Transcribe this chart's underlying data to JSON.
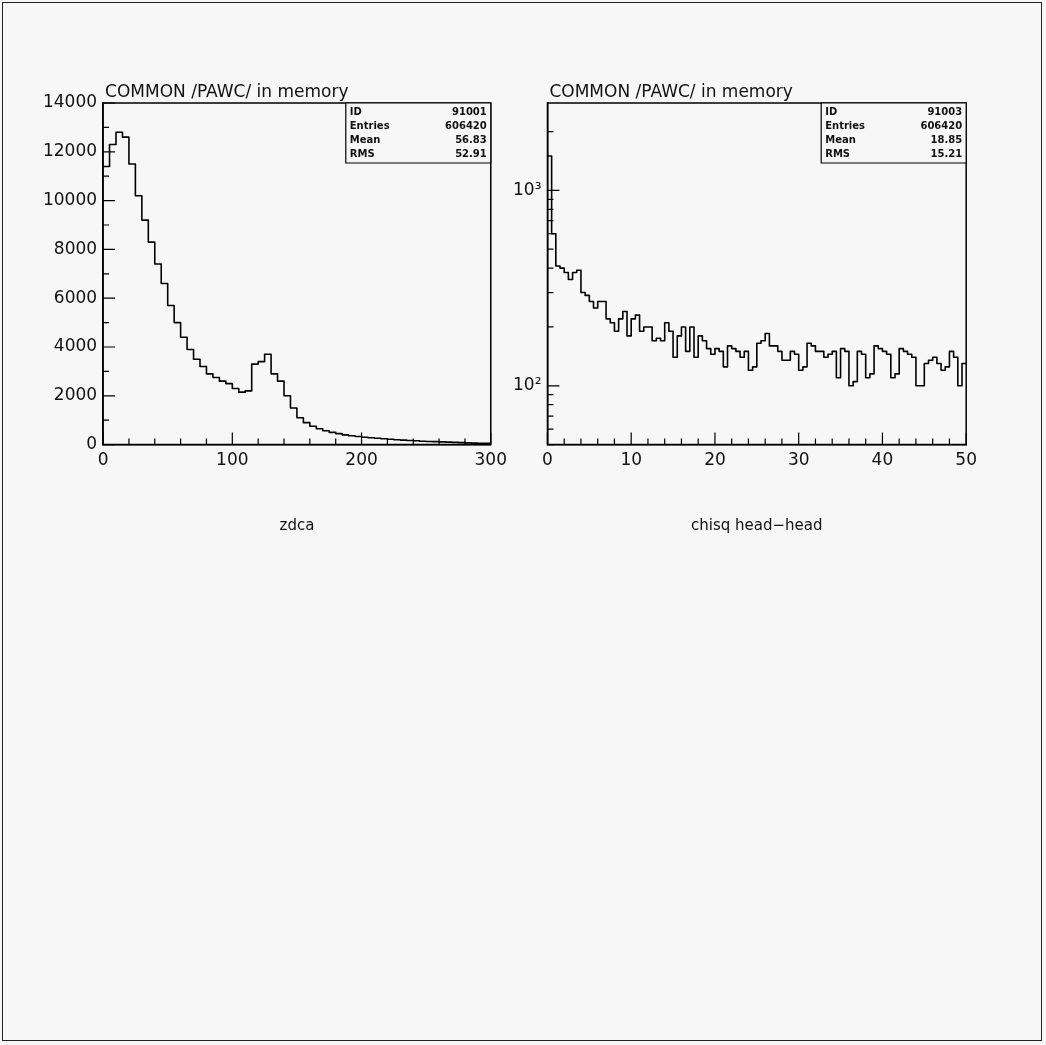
{
  "chart_data": [
    {
      "type": "histogram",
      "title": "COMMON /PAWC/ in memory",
      "xlabel": "zdca",
      "color": "#000000",
      "bins": [
        0,
        5,
        10,
        15,
        20,
        25,
        30,
        35,
        40,
        45,
        50,
        55,
        60,
        65,
        70,
        75,
        80,
        85,
        90,
        95,
        100,
        105,
        110,
        115,
        120,
        125,
        130,
        135,
        140,
        145,
        150,
        155,
        160,
        165,
        170,
        175,
        180,
        185,
        190,
        195,
        200,
        205,
        210,
        215,
        220,
        225,
        230,
        235,
        240,
        245,
        250,
        255,
        260,
        265,
        270,
        275,
        280,
        285,
        290,
        295,
        300
      ],
      "values": [
        11400,
        12300,
        12800,
        12600,
        11500,
        10200,
        9200,
        8300,
        7400,
        6600,
        5700,
        5000,
        4400,
        3900,
        3500,
        3200,
        2900,
        2750,
        2600,
        2500,
        2300,
        2150,
        2200,
        3300,
        3400,
        3700,
        2900,
        2600,
        2000,
        1500,
        1100,
        900,
        750,
        650,
        570,
        500,
        450,
        400,
        360,
        330,
        300,
        280,
        260,
        240,
        220,
        200,
        185,
        170,
        155,
        140,
        130,
        120,
        110,
        100,
        90,
        80,
        70,
        60,
        55,
        50
      ],
      "xlim": [
        0,
        300
      ],
      "ylim": [
        0,
        14000
      ],
      "xticks": [
        0,
        {
          "value": 20,
          "label": null
        },
        {
          "value": 40,
          "label": null
        },
        {
          "value": 60,
          "label": null
        },
        {
          "value": 80,
          "label": null
        },
        100,
        {
          "value": 120,
          "label": null
        },
        {
          "value": 140,
          "label": null
        },
        {
          "value": 160,
          "label": null
        },
        {
          "value": 180,
          "label": null
        },
        200,
        {
          "value": 220,
          "label": null
        },
        {
          "value": 240,
          "label": null
        },
        {
          "value": 260,
          "label": null
        },
        {
          "value": 280,
          "label": null
        },
        300
      ],
      "yticks": [
        0,
        {
          "value": 1000,
          "label": null
        },
        2000,
        {
          "value": 3000,
          "label": null
        },
        4000,
        {
          "value": 5000,
          "label": null
        },
        6000,
        {
          "value": 7000,
          "label": null
        },
        8000,
        {
          "value": 9000,
          "label": null
        },
        10000,
        {
          "value": 11000,
          "label": null
        },
        12000,
        {
          "value": 13000,
          "label": null
        },
        14000
      ],
      "annotations": [
        "ID",
        "91001",
        "Entries",
        "606420",
        "Mean",
        "56.83",
        "RMS",
        "52.91"
      ]
    },
    {
      "type": "histogram",
      "title": "COMMON /PAWC/ in memory",
      "xlabel": "chisq head−head",
      "color": "#000000",
      "log": "y",
      "bins": [
        0,
        0.5,
        1,
        1.5,
        2,
        2.5,
        3,
        3.5,
        4,
        4.5,
        5,
        5.5,
        6,
        6.5,
        7,
        7.5,
        8,
        8.5,
        9,
        9.5,
        10,
        10.5,
        11,
        11.5,
        12,
        12.5,
        13,
        13.5,
        14,
        14.5,
        15,
        15.5,
        16,
        16.5,
        17,
        17.5,
        18,
        18.5,
        19,
        19.5,
        20,
        20.5,
        21,
        21.5,
        22,
        22.5,
        23,
        23.5,
        24,
        24.5,
        25,
        25.5,
        26,
        26.5,
        27,
        27.5,
        28,
        28.5,
        29,
        29.5,
        30,
        30.5,
        31,
        31.5,
        32,
        32.5,
        33,
        33.5,
        34,
        34.5,
        35,
        35.5,
        36,
        36.5,
        37,
        37.5,
        38,
        38.5,
        39,
        39.5,
        40,
        40.5,
        41,
        41.5,
        42,
        42.5,
        43,
        43.5,
        44,
        44.5,
        45,
        45.5,
        46,
        46.5,
        47,
        47.5,
        48,
        48.5,
        49,
        49.5,
        50
      ],
      "values": [
        1500,
        600,
        410,
        400,
        380,
        350,
        380,
        390,
        300,
        290,
        270,
        250,
        270,
        270,
        220,
        210,
        190,
        220,
        240,
        180,
        220,
        230,
        190,
        200,
        200,
        170,
        175,
        170,
        210,
        190,
        140,
        180,
        200,
        150,
        200,
        140,
        180,
        170,
        155,
        145,
        155,
        150,
        125,
        160,
        155,
        150,
        140,
        150,
        120,
        125,
        165,
        170,
        185,
        160,
        160,
        150,
        135,
        135,
        150,
        145,
        120,
        125,
        165,
        160,
        150,
        150,
        140,
        145,
        150,
        110,
        155,
        150,
        100,
        105,
        150,
        145,
        110,
        115,
        160,
        155,
        150,
        145,
        110,
        115,
        155,
        150,
        145,
        140,
        100,
        100,
        130,
        135,
        140,
        130,
        120,
        125,
        150,
        140,
        100,
        130
      ],
      "xlim": [
        0,
        50
      ],
      "ylim": [
        50,
        2800
      ],
      "xticks": [
        0,
        {
          "value": 2,
          "label": null
        },
        {
          "value": 4,
          "label": null
        },
        {
          "value": 6,
          "label": null
        },
        {
          "value": 8,
          "label": null
        },
        10,
        {
          "value": 12,
          "label": null
        },
        {
          "value": 14,
          "label": null
        },
        {
          "value": 16,
          "label": null
        },
        {
          "value": 18,
          "label": null
        },
        20,
        {
          "value": 22,
          "label": null
        },
        {
          "value": 24,
          "label": null
        },
        {
          "value": 26,
          "label": null
        },
        {
          "value": 28,
          "label": null
        },
        30,
        {
          "value": 32,
          "label": null
        },
        {
          "value": 34,
          "label": null
        },
        {
          "value": 36,
          "label": null
        },
        {
          "value": 38,
          "label": null
        },
        40,
        {
          "value": 42,
          "label": null
        },
        {
          "value": 44,
          "label": null
        },
        {
          "value": 46,
          "label": null
        },
        {
          "value": 48,
          "label": null
        },
        50
      ],
      "yticks": [
        {
          "value": 50,
          "label": null
        },
        {
          "value": 60,
          "label": null
        },
        {
          "value": 70,
          "label": null
        },
        {
          "value": 80,
          "label": null
        },
        {
          "value": 90,
          "label": null
        },
        {
          "value": 100,
          "label": "10²"
        },
        {
          "value": 200,
          "label": null
        },
        {
          "value": 300,
          "label": null
        },
        {
          "value": 400,
          "label": null
        },
        {
          "value": 500,
          "label": null
        },
        {
          "value": 600,
          "label": null
        },
        {
          "value": 700,
          "label": null
        },
        {
          "value": 800,
          "label": null
        },
        {
          "value": 900,
          "label": null
        },
        {
          "value": 1000,
          "label": "10³"
        },
        {
          "value": 2000,
          "label": null
        }
      ],
      "annotations": [
        "ID",
        "91003",
        "Entries",
        "606420",
        "Mean",
        "18.85",
        "RMS",
        "15.21"
      ]
    }
  ]
}
